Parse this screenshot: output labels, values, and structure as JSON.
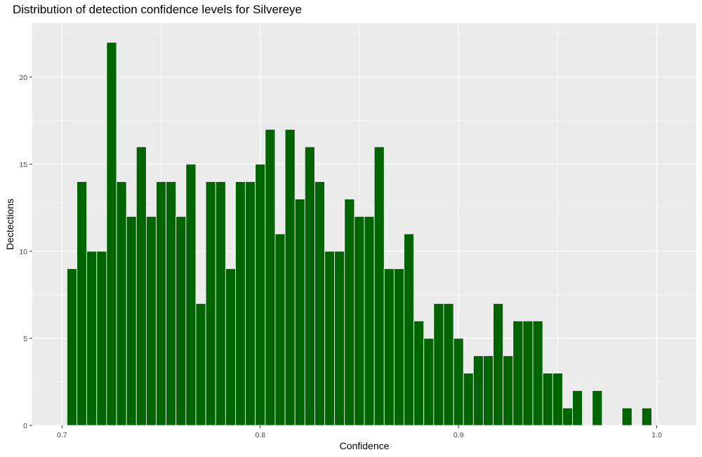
{
  "chart_data": {
    "type": "bar",
    "title": "Distribution of detection confidence levels for Silvereye",
    "xlabel": "Confidence",
    "ylabel": "Dectections",
    "xlim": [
      0.685,
      1.02
    ],
    "ylim": [
      0,
      23.1
    ],
    "x_ticks": [
      0.7,
      0.8,
      0.9,
      1.0
    ],
    "x_tick_labels": [
      "0.7",
      "0.8",
      "0.9",
      "1.0"
    ],
    "y_ticks": [
      0,
      5,
      10,
      15,
      20
    ],
    "y_tick_labels": [
      "0",
      "5",
      "10",
      "15",
      "20"
    ],
    "bin_width": 0.005,
    "bin_start": 0.7025,
    "values": [
      9,
      14,
      10,
      10,
      22,
      14,
      12,
      16,
      12,
      14,
      14,
      12,
      15,
      7,
      14,
      14,
      9,
      14,
      14,
      15,
      17,
      11,
      17,
      13,
      16,
      14,
      10,
      10,
      13,
      12,
      12,
      16,
      9,
      9,
      11,
      6,
      5,
      7,
      7,
      5,
      3,
      4,
      4,
      7,
      4,
      6,
      6,
      6,
      3,
      3,
      1,
      2,
      0,
      2,
      0,
      0,
      1,
      0,
      1
    ],
    "grid": true,
    "bar_color": "#006400",
    "bar_outline_color": "#ffffff",
    "panel_background": "#ebebeb",
    "grid_color": "#ffffff"
  }
}
